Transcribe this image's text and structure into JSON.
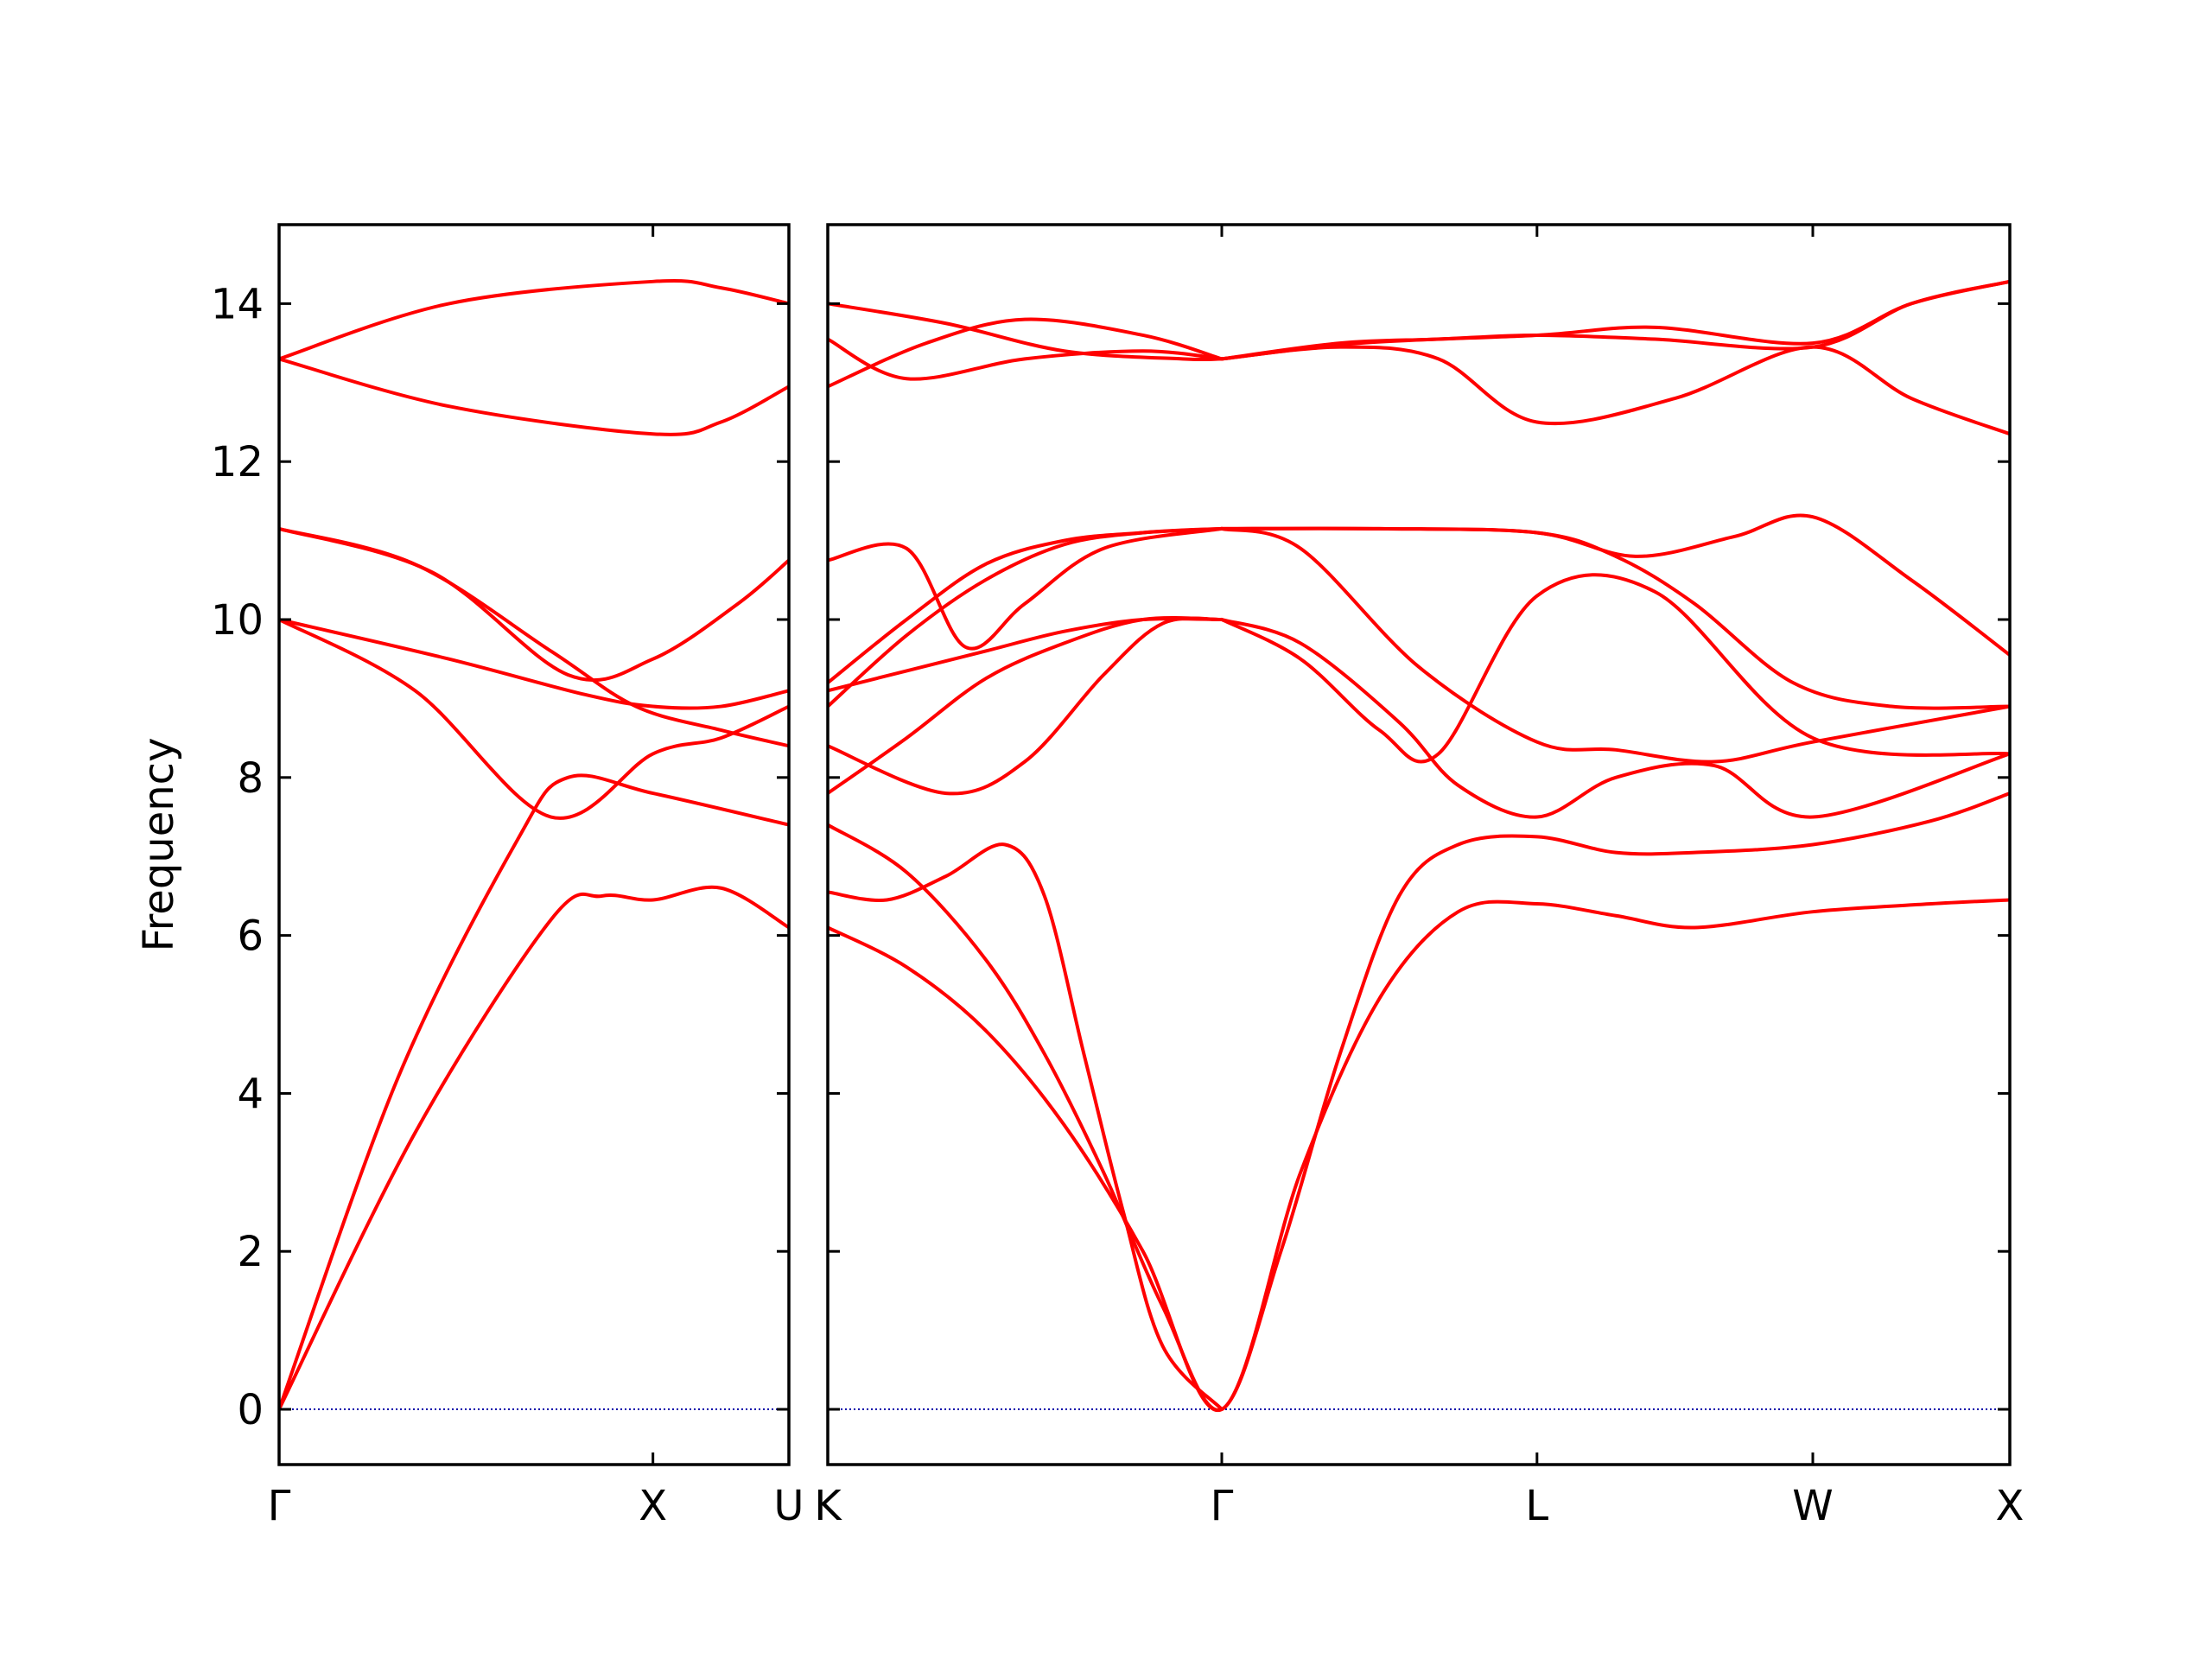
{
  "chart_data": {
    "type": "line",
    "ylabel": "Frequency",
    "xlabel": "",
    "ylim": [
      -0.7,
      15
    ],
    "yticks": [
      0,
      2,
      4,
      6,
      8,
      10,
      12,
      14
    ],
    "grid": false,
    "line_color": "#ff0000",
    "zero_line_color": "#0000aa",
    "panels": [
      {
        "xlim": [
          0,
          1.5
        ],
        "xticks": [
          {
            "x": 0,
            "label": "Γ"
          },
          {
            "x": 1.1,
            "label": "X"
          },
          {
            "x": 1.5,
            "label": "U"
          }
        ],
        "series": [
          {
            "x": [
              0,
              0.35,
              0.7,
              0.85,
              1.1,
              1.5
            ],
            "y": [
              0,
              4.2,
              7.2,
              8.0,
              7.8,
              7.4
            ]
          },
          {
            "x": [
              0,
              0.4,
              0.8,
              0.95,
              1.1,
              1.3,
              1.5
            ],
            "y": [
              0,
              3.5,
              6.2,
              6.5,
              6.45,
              6.6,
              6.1
            ]
          },
          {
            "x": [
              0,
              0.4,
              0.8,
              1.1,
              1.3,
              1.5
            ],
            "y": [
              10.0,
              9.1,
              7.5,
              8.3,
              8.5,
              8.9
            ]
          },
          {
            "x": [
              0,
              0.5,
              0.9,
              1.1,
              1.3,
              1.5
            ],
            "y": [
              10.0,
              9.5,
              9.05,
              8.9,
              8.9,
              9.1
            ]
          },
          {
            "x": [
              0,
              0.45,
              0.85,
              1.1,
              1.35,
              1.5
            ],
            "y": [
              11.15,
              10.6,
              9.3,
              9.5,
              10.2,
              10.75
            ]
          },
          {
            "x": [
              0,
              0.4,
              0.8,
              1.05,
              1.3,
              1.5
            ],
            "y": [
              11.15,
              10.7,
              9.6,
              8.9,
              8.6,
              8.4
            ]
          },
          {
            "x": [
              0,
              0.5,
              1.1,
              1.3,
              1.5
            ],
            "y": [
              13.3,
              12.7,
              12.35,
              12.5,
              12.95
            ]
          },
          {
            "x": [
              0,
              0.5,
              1.1,
              1.3,
              1.5
            ],
            "y": [
              13.3,
              14.0,
              14.28,
              14.2,
              14.0
            ]
          }
        ]
      },
      {
        "xlim": [
          0,
          3.0
        ],
        "xticks": [
          {
            "x": 0,
            "label": "K"
          },
          {
            "x": 1.0,
            "label": "Γ"
          },
          {
            "x": 1.8,
            "label": "L"
          },
          {
            "x": 2.5,
            "label": "W"
          },
          {
            "x": 3.0,
            "label": "X"
          }
        ],
        "series": [
          {
            "x": [
              0,
              0.2,
              0.4,
              0.6,
              0.8,
              1.0,
              1.2,
              1.4,
              1.6,
              1.8,
              2.0,
              2.2,
              2.5,
              2.8,
              3.0
            ],
            "y": [
              6.1,
              5.6,
              4.8,
              3.6,
              2.0,
              0,
              3.0,
              5.2,
              6.3,
              6.4,
              6.25,
              6.1,
              6.3,
              6.4,
              6.45
            ]
          },
          {
            "x": [
              0,
              0.2,
              0.4,
              0.55,
              0.7,
              0.85,
              1.0,
              1.15,
              1.3,
              1.45,
              1.6,
              1.8,
              2.0,
              2.2,
              2.5,
              2.8,
              3.0
            ],
            "y": [
              7.4,
              6.8,
              5.7,
              4.5,
              3.0,
              1.3,
              0,
              2.0,
              4.5,
              6.5,
              7.15,
              7.25,
              7.05,
              7.05,
              7.15,
              7.45,
              7.8
            ]
          },
          {
            "x": [
              0,
              0.15,
              0.3,
              0.45,
              0.55,
              0.65,
              0.75,
              0.85,
              1.0
            ],
            "y": [
              6.55,
              6.45,
              6.75,
              7.15,
              6.5,
              4.5,
              2.5,
              0.8,
              0
            ]
          },
          {
            "x": [
              0,
              0.2,
              0.4,
              0.6,
              0.8,
              1.0
            ],
            "y": [
              7.8,
              8.5,
              9.25,
              9.7,
              10.0,
              10.0
            ]
          },
          {
            "x": [
              0,
              0.3,
              0.5,
              0.7,
              0.85,
              1.0
            ],
            "y": [
              8.4,
              7.8,
              8.2,
              9.3,
              9.95,
              10.0
            ]
          },
          {
            "x": [
              0,
              0.2,
              0.4,
              0.6,
              0.8,
              1.0
            ],
            "y": [
              9.1,
              9.35,
              9.6,
              9.85,
              10.0,
              10.0
            ]
          },
          {
            "x": [
              0,
              0.2,
              0.4,
              0.6,
              0.8,
              1.0
            ],
            "y": [
              8.9,
              9.8,
              10.5,
              10.95,
              11.1,
              11.15
            ]
          },
          {
            "x": [
              0,
              0.2,
              0.35,
              0.5,
              0.7,
              1.0
            ],
            "y": [
              10.75,
              10.9,
              9.65,
              10.2,
              10.9,
              11.15
            ]
          },
          {
            "x": [
              0,
              0.2,
              0.4,
              0.6,
              0.8,
              1.0
            ],
            "y": [
              9.2,
              10.0,
              10.7,
              11.0,
              11.1,
              11.15
            ]
          },
          {
            "x": [
              1.0,
              1.2,
              1.45,
              1.6,
              1.8,
              2.0,
              2.25,
              2.5,
              3.0
            ],
            "y": [
              10.0,
              9.7,
              8.7,
              7.9,
              7.5,
              8.0,
              8.15,
              7.5,
              8.3
            ]
          },
          {
            "x": [
              1.0,
              1.2,
              1.4,
              1.55,
              1.8,
              2.1,
              2.5,
              3.0
            ],
            "y": [
              10.0,
              9.5,
              8.6,
              8.3,
              10.3,
              10.35,
              8.5,
              8.3
            ]
          },
          {
            "x": [
              1.0,
              1.2,
              1.5,
              1.8,
              2.0,
              2.25,
              2.5,
              3.0
            ],
            "y": [
              11.15,
              10.9,
              9.4,
              8.45,
              8.35,
              8.2,
              8.45,
              8.9
            ]
          },
          {
            "x": [
              1.0,
              1.4,
              1.8,
              2.0,
              2.2,
              2.45,
              2.7,
              3.0
            ],
            "y": [
              11.15,
              11.15,
              11.1,
              10.8,
              10.2,
              9.2,
              8.9,
              8.9
            ]
          },
          {
            "x": [
              1.0,
              1.4,
              1.8,
              2.05,
              2.3,
              2.5,
              2.75,
              3.0
            ],
            "y": [
              11.15,
              11.15,
              11.1,
              10.8,
              11.05,
              11.3,
              10.5,
              9.55
            ]
          },
          {
            "x": [
              0,
              0.2,
              0.5,
              0.8,
              1.0
            ],
            "y": [
              13.55,
              13.05,
              13.3,
              13.4,
              13.3
            ]
          },
          {
            "x": [
              0,
              0.25,
              0.5,
              0.8,
              1.0
            ],
            "y": [
              12.95,
              13.5,
              13.8,
              13.6,
              13.3
            ]
          },
          {
            "x": [
              0,
              0.3,
              0.6,
              0.9,
              1.0
            ],
            "y": [
              14.0,
              13.75,
              13.4,
              13.3,
              13.3
            ]
          },
          {
            "x": [
              1.0,
              1.3,
              1.55,
              1.8,
              2.15,
              2.5,
              2.75,
              3.0
            ],
            "y": [
              13.3,
              13.45,
              13.3,
              12.5,
              12.8,
              13.45,
              12.8,
              12.35
            ]
          },
          {
            "x": [
              1.0,
              1.3,
              1.55,
              1.8,
              2.1,
              2.5,
              2.75,
              3.0
            ],
            "y": [
              13.3,
              13.5,
              13.55,
              13.6,
              13.55,
              13.45,
              14.0,
              14.28
            ]
          },
          {
            "x": [
              1.0,
              1.35,
              1.8,
              2.1,
              2.5,
              2.75,
              3.0
            ],
            "y": [
              13.3,
              13.5,
              13.6,
              13.7,
              13.5,
              14.0,
              14.28
            ]
          }
        ]
      }
    ]
  }
}
